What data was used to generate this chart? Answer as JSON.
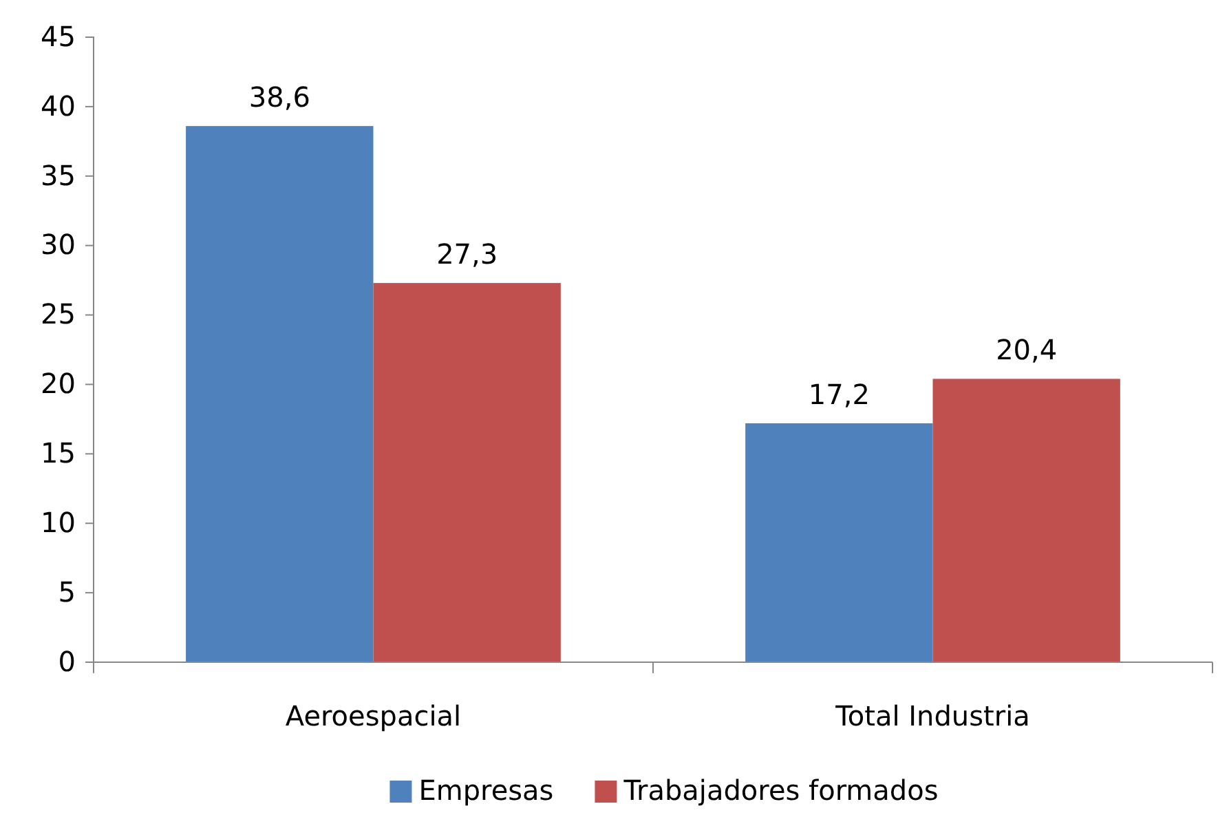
{
  "chart_data": {
    "type": "bar",
    "categories": [
      "Aeroespacial",
      "Total Industria"
    ],
    "series": [
      {
        "name": "Empresas",
        "color": "#4f81bd",
        "values": [
          38.6,
          17.2
        ],
        "value_labels": [
          "38,6",
          "17,2"
        ]
      },
      {
        "name": "Trabajadores formados",
        "color": "#c0504d",
        "values": [
          27.3,
          20.4
        ],
        "value_labels": [
          "27,3",
          "20,4"
        ]
      }
    ],
    "ylim": [
      0,
      45
    ],
    "yticks": [
      0,
      5,
      10,
      15,
      20,
      25,
      30,
      35,
      40,
      45
    ],
    "grid": false,
    "legend": "bottom"
  }
}
